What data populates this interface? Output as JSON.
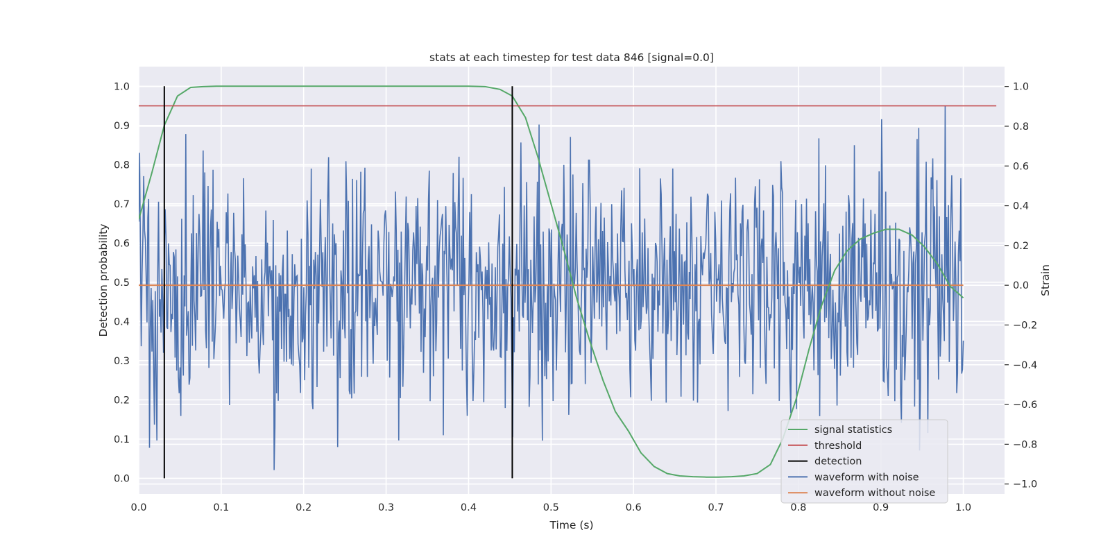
{
  "chart_data": {
    "type": "line",
    "title": "stats at each timestep for test data 846 [signal=0.0]",
    "xlabel": "Time (s)",
    "ylabel": "Detection probability",
    "y2label": "Strain",
    "xlim": [
      0.0,
      1.05
    ],
    "ylim": [
      -0.04,
      1.05
    ],
    "y2lim": [
      -1.05,
      1.1
    ],
    "xticks": [
      "0.0",
      "0.1",
      "0.2",
      "0.3",
      "0.4",
      "0.5",
      "0.6",
      "0.7",
      "0.8",
      "0.9",
      "1.0"
    ],
    "yticks": [
      "0.0",
      "0.1",
      "0.2",
      "0.3",
      "0.4",
      "0.5",
      "0.6",
      "0.7",
      "0.8",
      "0.9",
      "1.0"
    ],
    "y2ticks": [
      "−1.0",
      "−0.8",
      "−0.6",
      "−0.4",
      "−0.2",
      "0.0",
      "0.2",
      "0.4",
      "0.6",
      "0.8",
      "1.0"
    ],
    "grid": true,
    "legend_position": "lower-right",
    "colors": {
      "signal_statistics": "#55a868",
      "threshold": "#c44e52",
      "detection": "#000000",
      "waveform_noise": "#4c72b0",
      "waveform_clean": "#dd8452",
      "background": "#eaeaf2"
    },
    "series": [
      {
        "name": "signal statistics",
        "axis": "left",
        "x": [
          0.0,
          0.016,
          0.031,
          0.047,
          0.063,
          0.078,
          0.094,
          0.2,
          0.3,
          0.4,
          0.42,
          0.438,
          0.453,
          0.469,
          0.484,
          0.5,
          0.516,
          0.531,
          0.547,
          0.563,
          0.578,
          0.594,
          0.609,
          0.625,
          0.641,
          0.656,
          0.672,
          0.688,
          0.703,
          0.719,
          0.734,
          0.75,
          0.766,
          0.781,
          0.797,
          0.813,
          0.828,
          0.844,
          0.859,
          0.875,
          0.891,
          0.906,
          0.922,
          0.938,
          0.953,
          0.969,
          0.984,
          1.0
        ],
        "values": [
          0.66,
          0.78,
          0.9,
          0.975,
          0.997,
          0.999,
          1.0,
          1.0,
          1.0,
          1.0,
          0.999,
          0.992,
          0.975,
          0.92,
          0.82,
          0.7,
          0.58,
          0.46,
          0.35,
          0.25,
          0.17,
          0.12,
          0.065,
          0.03,
          0.012,
          0.006,
          0.004,
          0.003,
          0.003,
          0.004,
          0.006,
          0.012,
          0.035,
          0.1,
          0.2,
          0.33,
          0.44,
          0.53,
          0.58,
          0.61,
          0.625,
          0.635,
          0.635,
          0.62,
          0.59,
          0.545,
          0.49,
          0.46
        ]
      },
      {
        "name": "threshold",
        "axis": "left",
        "x": [
          0.0,
          1.04
        ],
        "values": [
          0.95,
          0.95
        ]
      },
      {
        "name": "detection",
        "axis": "left",
        "x": [
          0.031,
          0.453
        ],
        "values": [
          1.0,
          1.0
        ]
      },
      {
        "name": "waveform with noise",
        "axis": "right",
        "x_range": [
          0.0,
          1.0
        ],
        "sample_count": 1000,
        "amplitude_sd": 0.3,
        "min": -0.93,
        "max": 1.0
      },
      {
        "name": "waveform without noise",
        "axis": "right",
        "x": [
          0.0,
          1.0
        ],
        "values": [
          0.0,
          0.0
        ]
      }
    ],
    "legend": [
      "signal statistics",
      "threshold",
      "detection",
      "waveform with noise",
      "waveform without noise"
    ]
  }
}
